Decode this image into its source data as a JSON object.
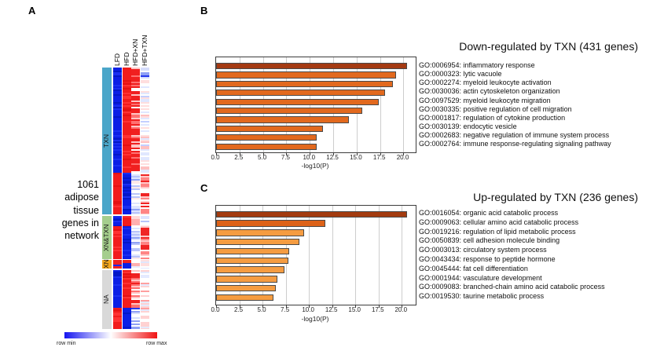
{
  "panels": {
    "a": {
      "letter": "A",
      "caption_lines": [
        "1061",
        "adipose",
        "tissue",
        "genes in",
        "network"
      ],
      "legend": {
        "min_label": "row min",
        "max_label": "row max"
      }
    },
    "b": {
      "letter": "B"
    },
    "c": {
      "letter": "C"
    }
  },
  "chart_data": [
    {
      "id": "heatmap_a",
      "type": "heatmap",
      "title": "1061 adipose tissue genes in network",
      "columns": [
        "LFD",
        "HFD",
        "HFD+XN",
        "HFD+TXN"
      ],
      "legend": {
        "min": "row min",
        "max": "row max",
        "gradient": [
          "#1414f0",
          "#ffffff",
          "#f01414"
        ]
      },
      "groups": [
        {
          "label": "TXN",
          "color": "#4BA6C9",
          "span": [
            0,
            187
          ]
        },
        {
          "label": "XN&TXN",
          "color": "#A5CE8D",
          "span": [
            189,
            244
          ]
        },
        {
          "label": "XN",
          "color": "#F4A71E",
          "span": [
            245,
            256
          ]
        },
        {
          "label": "NA",
          "color": "#D9D9D9",
          "span": [
            258,
            333
          ]
        }
      ],
      "blocks": [
        {
          "group": "TXN",
          "rel": [
            0,
            16
          ],
          "cols": [
            "strong_blue",
            "strong_red",
            "red_pale_mix",
            "blue_pale_mix"
          ]
        },
        {
          "group": "TXN",
          "rel": [
            16,
            134
          ],
          "cols": [
            "strong_blue",
            "strong_red",
            "red_pale_mix",
            "pale_cool_mix"
          ]
        },
        {
          "group": "TXN",
          "rel": [
            134,
            187
          ],
          "cols": [
            "strong_red",
            "strong_blue",
            "pale_blue_mix",
            "red_pink_mix"
          ]
        },
        {
          "group": "XN&TXN",
          "rel": [
            189,
            202
          ],
          "cols": [
            "strong_blue",
            "strong_red",
            "pale_pink_mix",
            "pale_blue_mix"
          ]
        },
        {
          "group": "XN&TXN",
          "rel": [
            202,
            244
          ],
          "cols": [
            "strong_red",
            "strong_blue",
            "pale_blue_mix",
            "red_pink_mix"
          ]
        },
        {
          "group": "XN",
          "rel": [
            245,
            256
          ],
          "cols": [
            "red_blue_rows",
            "red_top_blue",
            "pale_pink_mix",
            "pale_cool_mix"
          ]
        },
        {
          "group": "NA",
          "rel": [
            258,
            306
          ],
          "cols": [
            "strong_blue",
            "strong_red",
            "red_pale_mix",
            "pale_warm_mix"
          ]
        },
        {
          "group": "NA",
          "rel": [
            306,
            333
          ],
          "cols": [
            "strong_red",
            "strong_blue",
            "blue_pale_mix",
            "pale_warm_mix"
          ]
        }
      ],
      "palettes": {
        "strong_blue": {
          "type": "rand",
          "colors": [
            [
              "#0b1fe6",
              7
            ],
            [
              "#1a30f2",
              2
            ],
            [
              "#0318c8",
              2
            ]
          ]
        },
        "strong_red": {
          "type": "rand",
          "colors": [
            [
              "#f21c1c",
              7
            ],
            [
              "#e51212",
              2
            ],
            [
              "#ff3232",
              2
            ]
          ]
        },
        "red_pale_mix": {
          "type": "rand",
          "colors": [
            [
              "#f02020",
              5
            ],
            [
              "#ff7070",
              2
            ],
            [
              "#ffc4c4",
              2
            ],
            [
              "#ffffff",
              1
            ]
          ]
        },
        "pale_cool_mix": {
          "type": "rand",
          "colors": [
            [
              "#ffffff",
              4
            ],
            [
              "#ffdede",
              2
            ],
            [
              "#e0e7ff",
              2
            ],
            [
              "#ffc0c0",
              1
            ],
            [
              "#c4cfff",
              1
            ]
          ]
        },
        "pale_blue_mix": {
          "type": "rand",
          "colors": [
            [
              "#dde4ff",
              3
            ],
            [
              "#ffffff",
              3
            ],
            [
              "#b8c4fa",
              2
            ],
            [
              "#8fa2f5",
              1
            ],
            [
              "#ffe8e8",
              1
            ]
          ]
        },
        "red_pink_mix": {
          "type": "rand",
          "colors": [
            [
              "#f02525",
              3
            ],
            [
              "#ff8585",
              3
            ],
            [
              "#ffc9c9",
              2
            ],
            [
              "#ffffff",
              2
            ]
          ]
        },
        "pale_pink_mix": {
          "type": "rand",
          "colors": [
            [
              "#ffd9d9",
              3
            ],
            [
              "#ffffff",
              4
            ],
            [
              "#ffafaf",
              2
            ],
            [
              "#e8edff",
              1
            ]
          ]
        },
        "pale_warm_mix": {
          "type": "rand",
          "colors": [
            [
              "#ffffff",
              4
            ],
            [
              "#ffd2d2",
              3
            ],
            [
              "#ff9f9f",
              1
            ],
            [
              "#e4eaff",
              2
            ]
          ]
        },
        "blue_pale_mix": {
          "type": "rand",
          "colors": [
            [
              "#2538ee",
              3
            ],
            [
              "#8fa0f5",
              3
            ],
            [
              "#d6ddfc",
              2
            ],
            [
              "#ffffff",
              2
            ]
          ]
        },
        "red_blue_rows": {
          "type": "rand",
          "colors": [
            [
              "#f02020",
              7
            ],
            [
              "#1a28e8",
              3
            ]
          ]
        },
        "red_top_blue": {
          "type": "seq",
          "stops": [
            [
              "#f02020",
              0.35
            ],
            [
              "#0b1fe6",
              0.65
            ]
          ]
        }
      }
    },
    {
      "id": "bar_b",
      "type": "bar",
      "orientation": "horizontal",
      "title": "Down-regulated by TXN (431 genes)",
      "xlabel": "-log10(P)",
      "xlim": [
        0,
        21.3
      ],
      "xticks": [
        0,
        2.5,
        5,
        7.5,
        10,
        12.5,
        15,
        17.5,
        20
      ],
      "grid": true,
      "categories": [
        "GO:0006954: inflammatory response",
        "GO:0000323: lytic vacuole",
        "GO:0002274: myeloid leukocyte activation",
        "GO:0030036: actin cytoskeleton organization",
        "GO:0097529: myeloid leukocyte migration",
        "GO:0030335: positive regulation of cell migration",
        "GO:0001817: regulation of cytokine production",
        "GO:0030139: endocytic vesicle",
        "GO:0002683: negative regulation of immune system process",
        "GO:0002764: immune response-regulating signaling pathway"
      ],
      "values": [
        20.4,
        19.2,
        18.9,
        18.0,
        17.4,
        15.6,
        14.2,
        11.4,
        10.7,
        10.7
      ],
      "bar_colors": [
        "#A43A12",
        "#E2691E",
        "#E2691E",
        "#E2691E",
        "#E2691E",
        "#E2691E",
        "#E2691E",
        "#E2691E",
        "#E2691E",
        "#E2691E"
      ]
    },
    {
      "id": "bar_c",
      "type": "bar",
      "orientation": "horizontal",
      "title": "Up-regulated by TXN (236 genes)",
      "xlabel": "-log10(P)",
      "xlim": [
        0,
        21.5
      ],
      "xticks": [
        0,
        2.5,
        5,
        7.5,
        10,
        12.5,
        15,
        17.5,
        20
      ],
      "grid": true,
      "categories": [
        "GO:0016054: organic acid catabolic process",
        "GO:0009063: cellular amino acid catabolic process",
        "GO:0019216: regulation of lipid metabolic process",
        "GO:0050839: cell adhesion molecule binding",
        "GO:0003013: circulatory system process",
        "GO:0043434: response to peptide hormone",
        "GO:0045444: fat cell differentiation",
        "GO:0001944: vasculature development",
        "GO:0009083: branched-chain amino acid catabolic process",
        "GO:0019530: taurine metabolic process"
      ],
      "values": [
        20.6,
        11.8,
        9.5,
        9.0,
        7.9,
        7.8,
        7.4,
        6.6,
        6.4,
        6.2
      ],
      "bar_colors": [
        "#A33B0F",
        "#DD6218",
        "#F59C41",
        "#F59C41",
        "#F59C41",
        "#F59C41",
        "#F59C41",
        "#F59C41",
        "#F59C41",
        "#F59C41"
      ]
    }
  ]
}
